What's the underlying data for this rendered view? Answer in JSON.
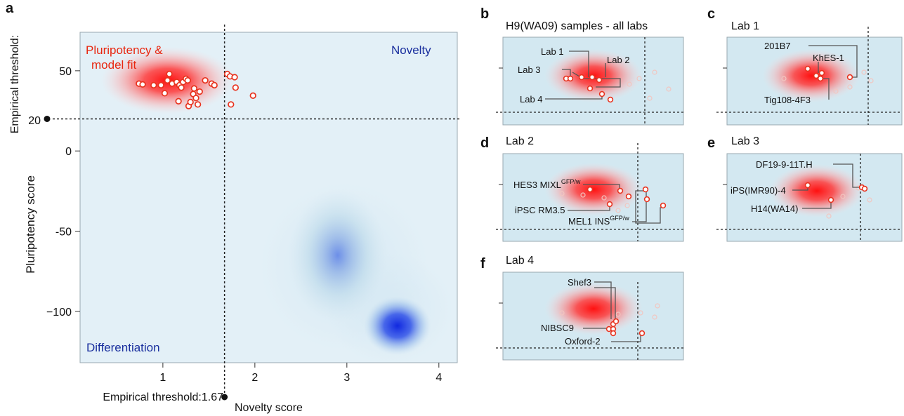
{
  "panels": {
    "a": {
      "letter": "a",
      "ylabel": "Pluripotency score",
      "xlabel": "Novelty score",
      "yticks": [
        "50",
        "0",
        "-50",
        "−100"
      ],
      "xticks": [
        "1",
        "2",
        "3",
        "4"
      ],
      "thr_y_label": "Empirical threshold:",
      "thr_y_value": "20",
      "thr_x_label": "Empirical threshold:1.67",
      "region_pluri_1": "Pluripotency &",
      "region_pluri_2": "model fit",
      "region_novelty": "Novelty",
      "region_diff": "Differentiation"
    },
    "b": {
      "letter": "b",
      "title": "H9(WA09) samples - all labs",
      "labels": [
        "Lab 1",
        "Lab 2",
        "Lab 3",
        "Lab 4"
      ]
    },
    "c": {
      "letter": "c",
      "title": "Lab 1",
      "labels": [
        "201B7",
        "KhES-1",
        "Tig108-4F3"
      ]
    },
    "d": {
      "letter": "d",
      "title": "Lab 2",
      "labels": [
        "HES3 MIXL",
        "GFP/w",
        "iPSC RM3.5",
        "MEL1 INS",
        "GFP/w"
      ]
    },
    "e": {
      "letter": "e",
      "title": "Lab 3",
      "labels": [
        "DF19-9-11T.H",
        "iPS(IMR90)-4",
        "H14(WA14)"
      ]
    },
    "f": {
      "letter": "f",
      "title": "Lab 4",
      "labels": [
        "Shef3",
        "NIBSC9",
        "Oxford-2"
      ]
    }
  },
  "chart_data": {
    "type": "scatter",
    "xlabel": "Novelty score",
    "ylabel": "Pluripotency score",
    "xlim": [
      0.1,
      4.2
    ],
    "ylim": [
      -132,
      74
    ],
    "xticks": [
      1,
      2,
      3,
      4
    ],
    "yticks": [
      50,
      0,
      -50,
      -100
    ],
    "thresholds": {
      "novelty": 1.67,
      "pluripotency": 20
    },
    "density_peaks": [
      {
        "x": 1.05,
        "y": 44,
        "color": "#ff1a1a"
      },
      {
        "x": 2.9,
        "y": -65,
        "color": "#6f8fe6"
      },
      {
        "x": 3.55,
        "y": -109,
        "color": "#1530e0"
      }
    ],
    "series": [
      {
        "points": [
          [
            0.74,
            42
          ],
          [
            0.78,
            41.5
          ],
          [
            0.9,
            41
          ],
          [
            0.98,
            41
          ],
          [
            1.05,
            44
          ],
          [
            1.07,
            48
          ],
          [
            1.1,
            42
          ],
          [
            1.15,
            43
          ],
          [
            1.18,
            41
          ],
          [
            1.2,
            39.5
          ],
          [
            1.22,
            43
          ],
          [
            1.25,
            45
          ],
          [
            1.27,
            44
          ],
          [
            1.02,
            36
          ],
          [
            1.17,
            31
          ],
          [
            1.28,
            28
          ],
          [
            1.3,
            30.5
          ],
          [
            1.33,
            35.5
          ],
          [
            1.34,
            39
          ],
          [
            1.36,
            33
          ],
          [
            1.38,
            29
          ],
          [
            1.4,
            37
          ],
          [
            1.46,
            44
          ],
          [
            1.53,
            42
          ],
          [
            1.56,
            41
          ],
          [
            1.7,
            48
          ],
          [
            1.73,
            46.5
          ],
          [
            1.78,
            46
          ],
          [
            1.79,
            39.5
          ],
          [
            1.74,
            29
          ],
          [
            1.98,
            34.5
          ]
        ]
      }
    ]
  }
}
